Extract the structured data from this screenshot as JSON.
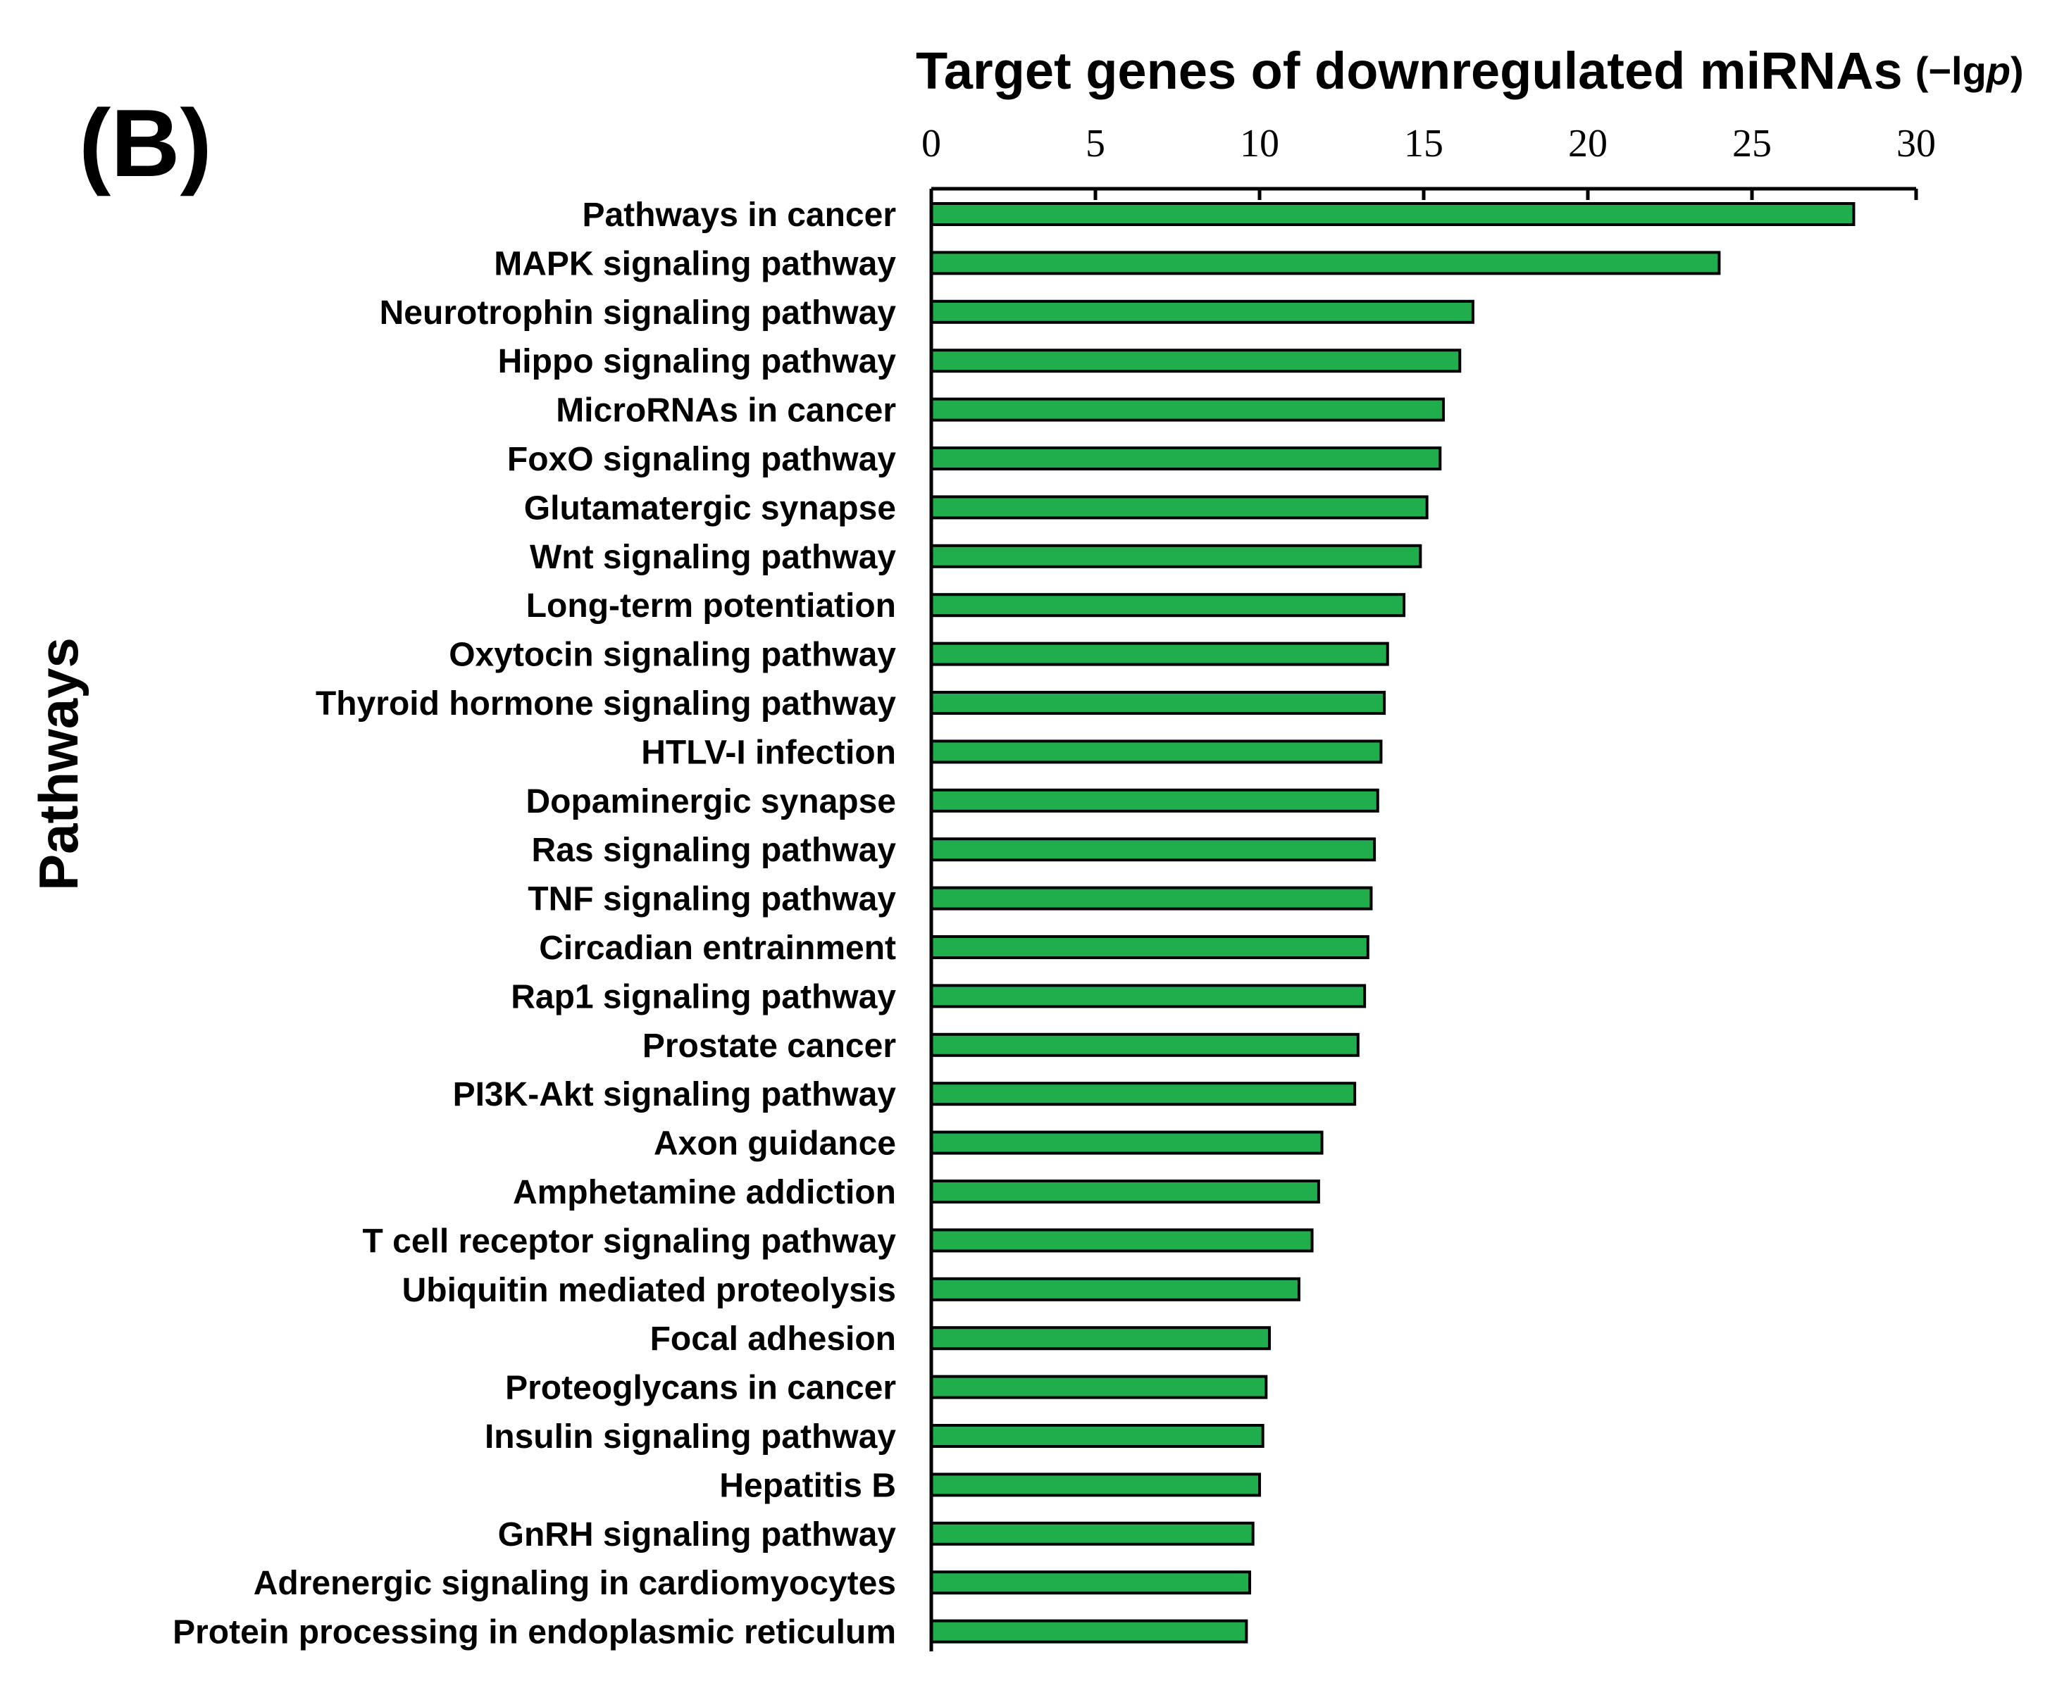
{
  "panel_label": "(B)",
  "colors": {
    "bar_fill": "#1fae4b",
    "bar_stroke": "#000000",
    "axis": "#000000",
    "text": "#000000"
  },
  "chart_data": {
    "type": "bar",
    "orientation": "horizontal",
    "title": "Target genes of downregulated miRNAs",
    "unit_label": "(−lgp)",
    "unit_prefix": "(−lg",
    "unit_var": "p",
    "unit_suffix": ")",
    "xlabel": "",
    "ylabel": "Pathways",
    "xlim": [
      0,
      30
    ],
    "ticks": [
      0,
      5,
      10,
      15,
      20,
      25,
      30
    ],
    "x_axis_position": "top",
    "grid": false,
    "categories": [
      "Pathways in cancer",
      "MAPK signaling pathway",
      "Neurotrophin signaling pathway",
      "Hippo signaling pathway",
      "MicroRNAs in cancer",
      "FoxO signaling pathway",
      "Glutamatergic synapse",
      "Wnt signaling pathway",
      "Long-term potentiation",
      "Oxytocin signaling pathway",
      "Thyroid hormone signaling pathway",
      "HTLV-I infection",
      "Dopaminergic synapse",
      "Ras signaling pathway",
      "TNF signaling pathway",
      "Circadian entrainment",
      "Rap1 signaling pathway",
      "Prostate cancer",
      "PI3K-Akt signaling pathway",
      "Axon guidance",
      "Amphetamine addiction",
      "T cell receptor signaling pathway",
      "Ubiquitin mediated proteolysis",
      "Focal adhesion",
      "Proteoglycans in cancer",
      "Insulin signaling pathway",
      "Hepatitis B",
      "GnRH signaling pathway",
      "Adrenergic signaling in cardiomyocytes",
      "Protein processing in endoplasmic reticulum"
    ],
    "values": [
      28.1,
      24.0,
      16.5,
      16.1,
      15.6,
      15.5,
      15.1,
      14.9,
      14.4,
      13.9,
      13.8,
      13.7,
      13.6,
      13.5,
      13.4,
      13.3,
      13.2,
      13.0,
      12.9,
      11.9,
      11.8,
      11.6,
      11.2,
      10.3,
      10.2,
      10.1,
      10.0,
      9.8,
      9.7,
      9.6
    ]
  }
}
